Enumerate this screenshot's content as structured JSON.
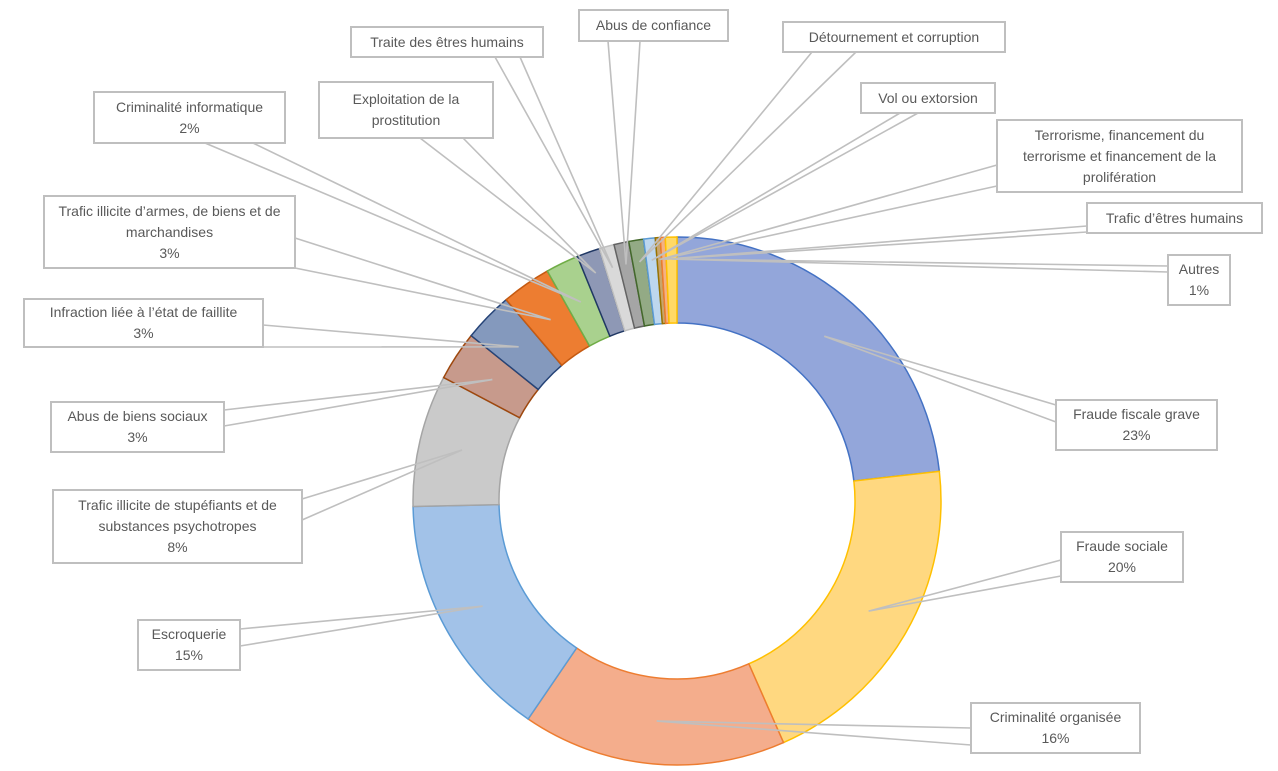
{
  "chart_data": {
    "type": "pie",
    "variant": "doughnut",
    "title": "",
    "start_angle_deg": 0,
    "direction": "clockwise",
    "slices": [
      {
        "name": "Fraude fiscale grave",
        "value": 23,
        "pct": "23%",
        "color": "#93a6da",
        "border": "#4472c4"
      },
      {
        "name": "Fraude sociale",
        "value": 20,
        "pct": "20%",
        "color": "#ffd880",
        "border": "#ffc000"
      },
      {
        "name": "Criminalité organisée",
        "value": 16,
        "pct": "16%",
        "color": "#f4ad8c",
        "border": "#ed7d31"
      },
      {
        "name": "Escroquerie",
        "value": 15,
        "pct": "15%",
        "color": "#a2c2e8",
        "border": "#5b9bd5"
      },
      {
        "name": "Trafic illicite de stupéfiants et de substances psychotropes",
        "value": 8,
        "pct": "8%",
        "color": "#cacaca",
        "border": "#a5a5a5"
      },
      {
        "name": "Abus de biens sociaux",
        "value": 3,
        "pct": "3%",
        "color": "#c79a8c",
        "border": "#9e480e"
      },
      {
        "name": "Infraction liée à l’état de faillite",
        "value": 3,
        "pct": "3%",
        "color": "#8499bd",
        "border": "#264478"
      },
      {
        "name": "Trafic illicite d’armes, de biens et de marchandises",
        "value": 3,
        "pct": "3%",
        "color": "#ed7d31",
        "border": "#c55a11"
      },
      {
        "name": "Criminalité informatique",
        "value": 2,
        "pct": "2%",
        "color": "#a9d18e",
        "border": "#70ad47"
      },
      {
        "name": "Exploitation de la prostitution",
        "value": 1.4,
        "pct": null,
        "color": "#8e98b5",
        "border": "#203864"
      },
      {
        "name": "Traite des êtres humains",
        "value": 0.9,
        "pct": null,
        "color": "#d9d9d9",
        "border": "#bfbfbf"
      },
      {
        "name": "Abus de confiance",
        "value": 0.9,
        "pct": null,
        "color": "#a5a5a5",
        "border": "#636363"
      },
      {
        "name": "Détournement et corruption",
        "value": 0.9,
        "pct": null,
        "color": "#93aa85",
        "border": "#43682b"
      },
      {
        "name": "Vol ou extorsion",
        "value": 0.7,
        "pct": null,
        "color": "#bdd7ee",
        "border": "#5b9bd5"
      },
      {
        "name": "Terrorisme, financement du terrorisme et financement de la prolifération",
        "value": 0.3,
        "pct": null,
        "color": "#c9a56b",
        "border": "#997300"
      },
      {
        "name": "Trafic d’êtres humains",
        "value": 0.3,
        "pct": null,
        "color": "#f4b183",
        "border": "#ed7d31"
      },
      {
        "name": "Autres",
        "value": 0.7,
        "pct": "1%",
        "color": "#ffd966",
        "border": "#ffc000"
      }
    ]
  }
}
